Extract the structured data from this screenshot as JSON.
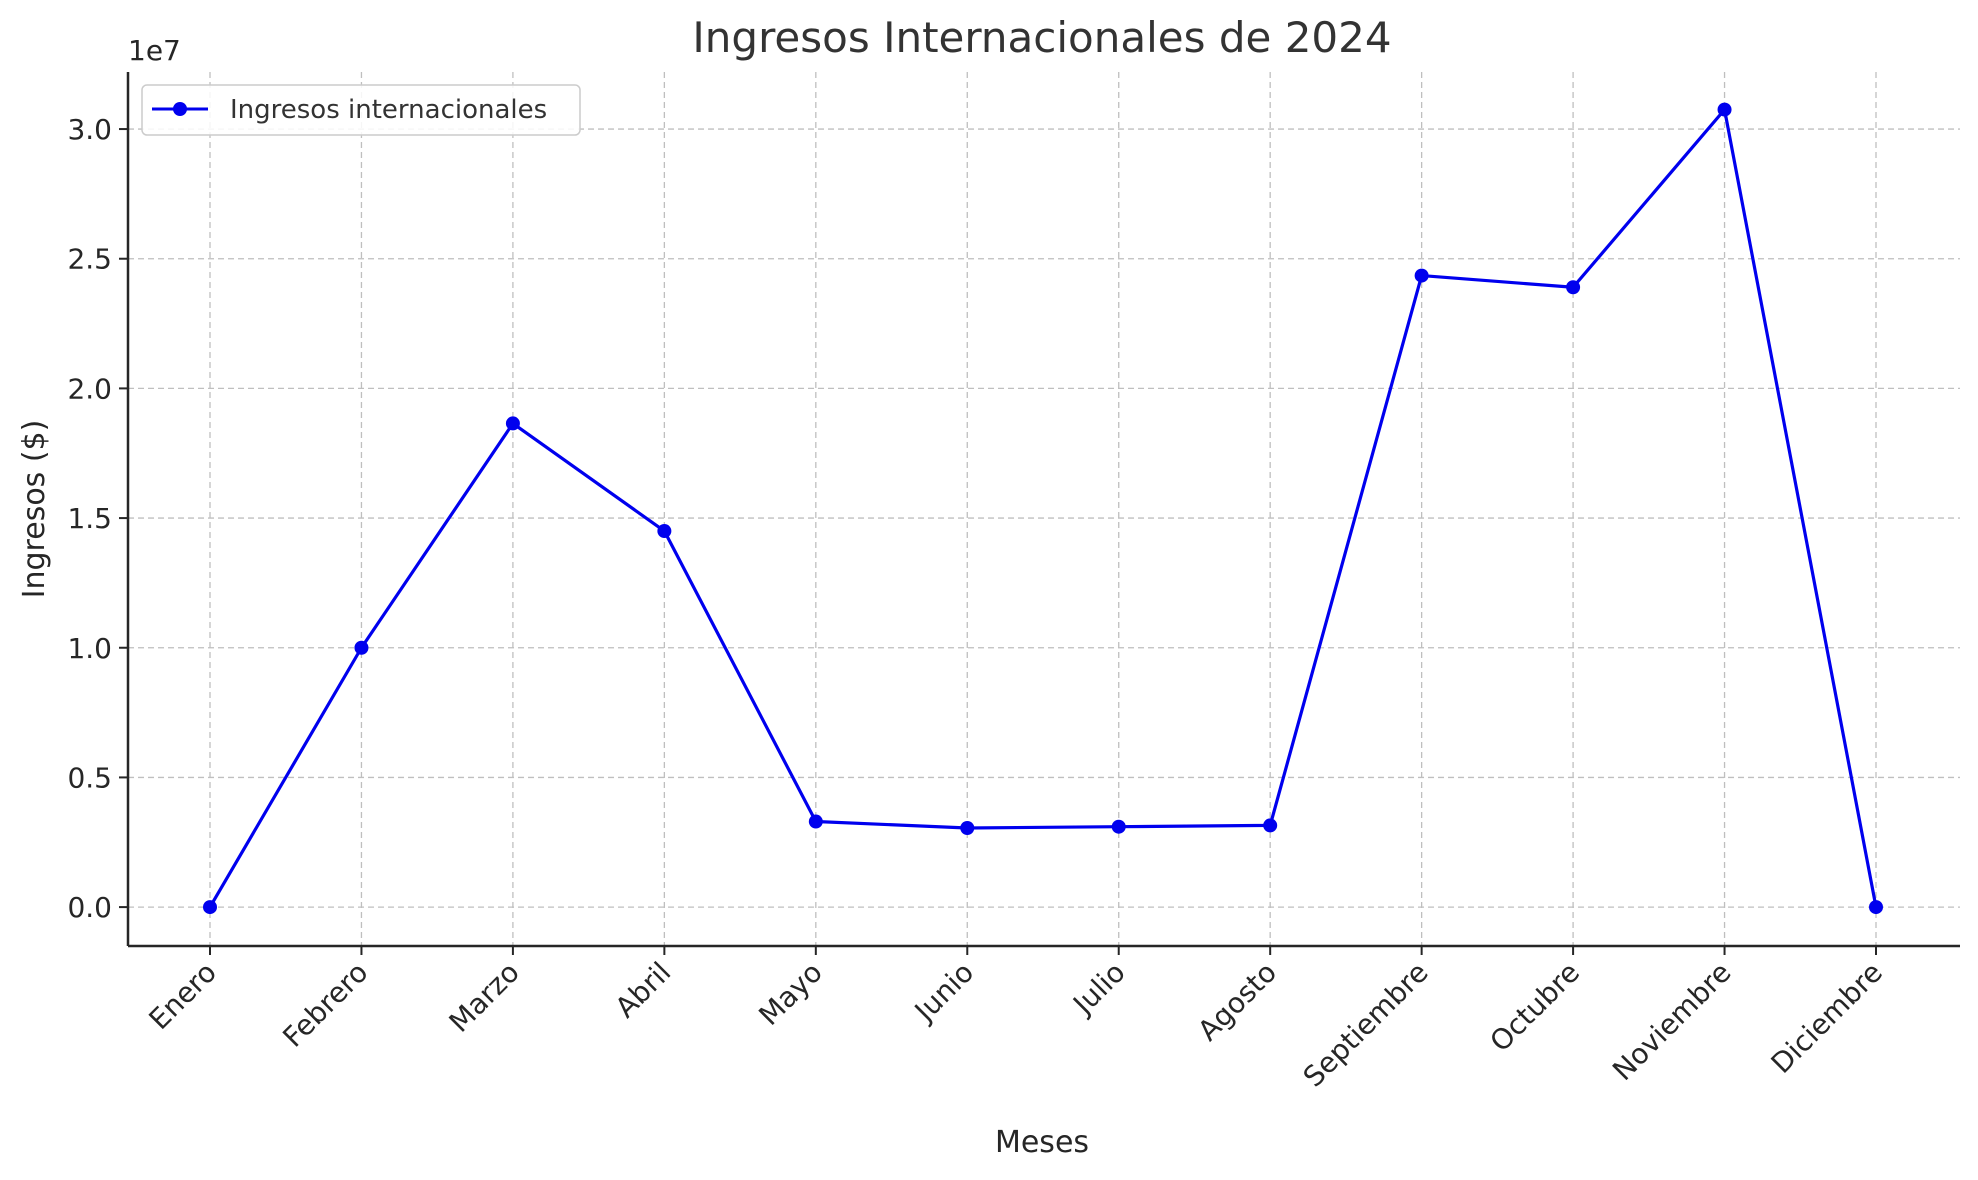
{
  "chart_data": {
    "type": "line",
    "title": "Ingresos Internacionales de 2024",
    "xlabel": "Meses",
    "ylabel": "Ingresos ($)",
    "y_offset_label": "1e7",
    "categories": [
      "Enero",
      "Febrero",
      "Marzo",
      "Abril",
      "Mayo",
      "Junio",
      "Julio",
      "Agosto",
      "Septiembre",
      "Octubre",
      "Noviembre",
      "Diciembre"
    ],
    "series": [
      {
        "name": "Ingresos internacionales",
        "color": "#0000ee",
        "values": [
          0,
          10000000,
          18650000,
          14500000,
          3300000,
          3050000,
          3100000,
          3150000,
          24350000,
          23900000,
          30750000,
          0
        ]
      }
    ],
    "ylim": [
      -1500000,
      32200000
    ],
    "yticks": [
      0,
      5000000,
      10000000,
      15000000,
      20000000,
      25000000,
      30000000
    ],
    "ytick_labels": [
      "0.0",
      "0.5",
      "1.0",
      "1.5",
      "2.0",
      "2.5",
      "3.0"
    ],
    "grid": true,
    "legend_position": "top-left"
  }
}
